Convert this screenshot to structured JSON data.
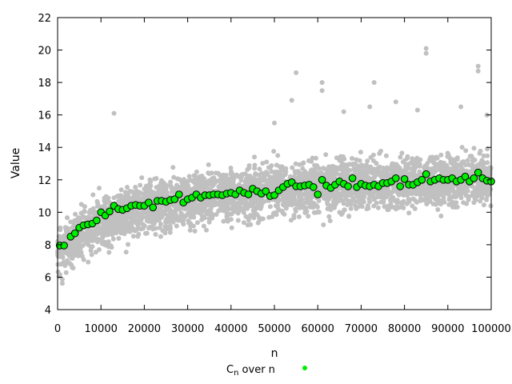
{
  "chart_data": {
    "type": "scatter",
    "xlabel": "n",
    "ylabel": "Value",
    "xlim": [
      0,
      100000
    ],
    "ylim": [
      4,
      22
    ],
    "x_ticks": [
      0,
      10000,
      20000,
      30000,
      40000,
      50000,
      60000,
      70000,
      80000,
      90000,
      100000
    ],
    "y_ticks": [
      4,
      6,
      8,
      10,
      12,
      14,
      16,
      18,
      20,
      22
    ],
    "grid": false,
    "legend_position": "bottom-center",
    "background_series": {
      "color": "#c0c0c0",
      "trend": [
        [
          0,
          7.6
        ],
        [
          10000,
          9.4
        ],
        [
          20000,
          10.3
        ],
        [
          30000,
          10.8
        ],
        [
          40000,
          11.1
        ],
        [
          50000,
          11.4
        ],
        [
          60000,
          11.6
        ],
        [
          70000,
          11.8
        ],
        [
          80000,
          11.9
        ],
        [
          90000,
          12.0
        ],
        [
          100000,
          12.1
        ]
      ],
      "outliers": [
        [
          55000,
          18.6
        ],
        [
          61000,
          18.0
        ],
        [
          73000,
          18.0
        ],
        [
          85000,
          19.8
        ],
        [
          85000,
          20.1
        ],
        [
          97000,
          19.0
        ],
        [
          97000,
          18.7
        ],
        [
          13000,
          16.1
        ],
        [
          50000,
          15.5
        ],
        [
          54000,
          16.9
        ],
        [
          61000,
          17.5
        ],
        [
          66000,
          16.2
        ],
        [
          72000,
          16.5
        ],
        [
          78000,
          16.8
        ],
        [
          83000,
          16.3
        ],
        [
          93000,
          16.5
        ],
        [
          99000,
          16.0
        ]
      ]
    },
    "series": [
      {
        "name": "C_n over n",
        "color": "#00ee00",
        "points": [
          [
            500,
            7.95
          ],
          [
            1500,
            7.95
          ],
          [
            3000,
            8.5
          ],
          [
            4000,
            8.7
          ],
          [
            5000,
            9.05
          ],
          [
            6000,
            9.2
          ],
          [
            7000,
            9.25
          ],
          [
            8000,
            9.3
          ],
          [
            9000,
            9.5
          ],
          [
            10000,
            10.0
          ],
          [
            11000,
            9.8
          ],
          [
            12000,
            10.05
          ],
          [
            13000,
            10.4
          ],
          [
            14000,
            10.2
          ],
          [
            15000,
            10.15
          ],
          [
            16000,
            10.25
          ],
          [
            17000,
            10.4
          ],
          [
            18000,
            10.45
          ],
          [
            19000,
            10.4
          ],
          [
            20000,
            10.4
          ],
          [
            21000,
            10.6
          ],
          [
            22000,
            10.3
          ],
          [
            23000,
            10.7
          ],
          [
            24000,
            10.7
          ],
          [
            25000,
            10.65
          ],
          [
            26000,
            10.75
          ],
          [
            27000,
            10.8
          ],
          [
            28000,
            11.1
          ],
          [
            29000,
            10.6
          ],
          [
            30000,
            10.8
          ],
          [
            31000,
            10.9
          ],
          [
            32000,
            11.1
          ],
          [
            33000,
            10.9
          ],
          [
            34000,
            11.05
          ],
          [
            35000,
            11.05
          ],
          [
            36000,
            11.1
          ],
          [
            37000,
            11.1
          ],
          [
            38000,
            11.05
          ],
          [
            39000,
            11.15
          ],
          [
            40000,
            11.2
          ],
          [
            41000,
            11.1
          ],
          [
            42000,
            11.35
          ],
          [
            43000,
            11.2
          ],
          [
            44000,
            11.1
          ],
          [
            45000,
            11.45
          ],
          [
            46000,
            11.3
          ],
          [
            47000,
            11.15
          ],
          [
            48000,
            11.3
          ],
          [
            49000,
            11.0
          ],
          [
            50000,
            11.05
          ],
          [
            51000,
            11.35
          ],
          [
            52000,
            11.55
          ],
          [
            53000,
            11.75
          ],
          [
            54000,
            11.85
          ],
          [
            55000,
            11.6
          ],
          [
            56000,
            11.6
          ],
          [
            57000,
            11.65
          ],
          [
            58000,
            11.7
          ],
          [
            59000,
            11.55
          ],
          [
            60000,
            11.1
          ],
          [
            61000,
            12.0
          ],
          [
            62000,
            11.65
          ],
          [
            63000,
            11.5
          ],
          [
            64000,
            11.7
          ],
          [
            65000,
            11.9
          ],
          [
            66000,
            11.75
          ],
          [
            67000,
            11.6
          ],
          [
            68000,
            12.1
          ],
          [
            69000,
            11.55
          ],
          [
            70000,
            11.75
          ],
          [
            71000,
            11.65
          ],
          [
            72000,
            11.6
          ],
          [
            73000,
            11.7
          ],
          [
            74000,
            11.6
          ],
          [
            75000,
            11.8
          ],
          [
            76000,
            11.8
          ],
          [
            77000,
            11.9
          ],
          [
            78000,
            12.1
          ],
          [
            79000,
            11.6
          ],
          [
            80000,
            12.05
          ],
          [
            81000,
            11.7
          ],
          [
            82000,
            11.7
          ],
          [
            83000,
            11.85
          ],
          [
            84000,
            12.0
          ],
          [
            85000,
            12.35
          ],
          [
            86000,
            11.9
          ],
          [
            87000,
            12.0
          ],
          [
            88000,
            12.1
          ],
          [
            89000,
            12.0
          ],
          [
            90000,
            12.0
          ],
          [
            91000,
            12.1
          ],
          [
            92000,
            11.9
          ],
          [
            93000,
            12.0
          ],
          [
            94000,
            12.2
          ],
          [
            95000,
            11.9
          ],
          [
            96000,
            12.1
          ],
          [
            97000,
            12.45
          ],
          [
            98000,
            12.1
          ],
          [
            99000,
            11.95
          ],
          [
            100000,
            11.9
          ]
        ]
      }
    ]
  },
  "legend": {
    "label_main": "C",
    "label_sub": "n",
    "label_rest": " over n"
  }
}
